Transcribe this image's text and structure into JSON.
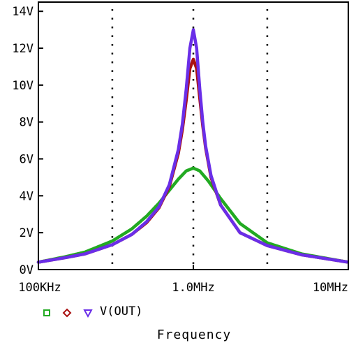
{
  "chart_data": {
    "type": "line",
    "title": "",
    "xlabel": "Frequency",
    "ylabel": "",
    "x_scale": "log",
    "xlim": [
      100000,
      10000000
    ],
    "ylim": [
      0,
      14.5
    ],
    "x_ticks": [
      {
        "value": 100000,
        "label": "100KHz"
      },
      {
        "value": 1000000,
        "label": "1.0MHz"
      },
      {
        "value": 10000000,
        "label": "10MHz"
      }
    ],
    "y_ticks": [
      {
        "value": 0,
        "label": "0V"
      },
      {
        "value": 2,
        "label": "2V"
      },
      {
        "value": 4,
        "label": "4V"
      },
      {
        "value": 6,
        "label": "6V"
      },
      {
        "value": 8,
        "label": "8V"
      },
      {
        "value": 10,
        "label": "10V"
      },
      {
        "value": 12,
        "label": "12V"
      },
      {
        "value": 14,
        "label": "14V"
      }
    ],
    "grid": "dotted vertical lines at 0.3MHz, 1.0MHz, 3MHz",
    "legend": {
      "placement": "bottom-left",
      "label": "V(OUT)",
      "markers": [
        "square",
        "diamond",
        "triangle-down"
      ]
    },
    "series": [
      {
        "color": "#22aa22",
        "marker": "square",
        "x": [
          100000,
          150000,
          200000,
          300000,
          400000,
          500000,
          600000,
          700000,
          800000,
          900000,
          1000000,
          1100000,
          1250000,
          1500000,
          2000000,
          3000000,
          5000000,
          10000000
        ],
        "y": [
          0.4,
          0.7,
          0.95,
          1.55,
          2.2,
          2.9,
          3.6,
          4.3,
          4.9,
          5.35,
          5.5,
          5.35,
          4.8,
          3.85,
          2.5,
          1.45,
          0.85,
          0.4
        ]
      },
      {
        "color": "#aa1111",
        "marker": "diamond",
        "x": [
          100000,
          150000,
          200000,
          300000,
          400000,
          500000,
          600000,
          700000,
          800000,
          850000,
          900000,
          950000,
          1000000,
          1050000,
          1100000,
          1150000,
          1200000,
          1300000,
          1500000,
          2000000,
          3000000,
          5000000,
          10000000
        ],
        "y": [
          0.4,
          0.65,
          0.85,
          1.35,
          1.9,
          2.55,
          3.35,
          4.5,
          6.3,
          7.6,
          9.2,
          10.9,
          11.4,
          10.9,
          9.3,
          7.8,
          6.6,
          5.0,
          3.5,
          2.0,
          1.3,
          0.8,
          0.4
        ]
      },
      {
        "color": "#6a2ee8",
        "marker": "triangle-down",
        "x": [
          100000,
          150000,
          200000,
          300000,
          400000,
          500000,
          600000,
          700000,
          800000,
          850000,
          900000,
          950000,
          1000000,
          1050000,
          1100000,
          1150000,
          1200000,
          1300000,
          1500000,
          2000000,
          3000000,
          5000000,
          10000000
        ],
        "y": [
          0.4,
          0.65,
          0.85,
          1.35,
          1.9,
          2.6,
          3.4,
          4.6,
          6.5,
          7.9,
          9.8,
          12.0,
          13.0,
          12.0,
          9.8,
          8.0,
          6.7,
          5.1,
          3.5,
          2.0,
          1.3,
          0.8,
          0.4
        ]
      }
    ]
  }
}
